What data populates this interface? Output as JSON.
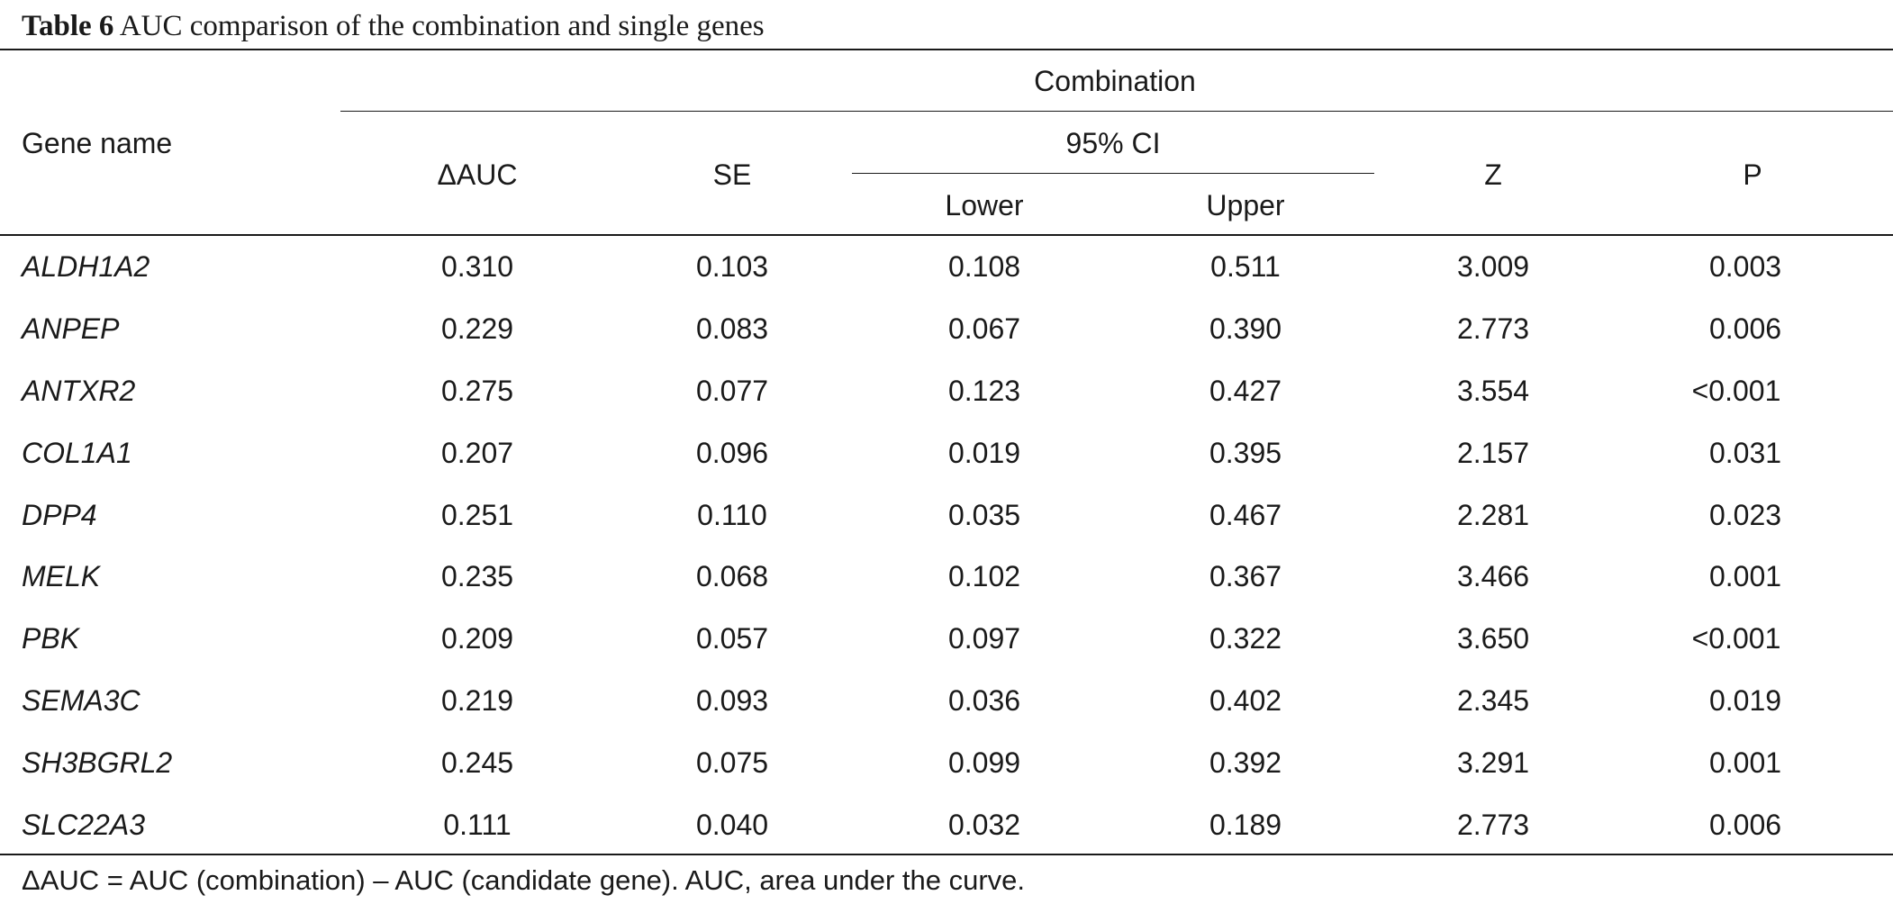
{
  "caption": {
    "label": "Table 6",
    "title": "AUC comparison of the combination and single genes"
  },
  "header": {
    "gene_name": "Gene name",
    "group": "Combination",
    "delta_auc": "ΔAUC",
    "se": "SE",
    "ci": "95% CI",
    "lower": "Lower",
    "upper": "Upper",
    "z": "Z",
    "p": "P"
  },
  "rows": [
    {
      "gene": "ALDH1A2",
      "dauc": "0.310",
      "se": "0.103",
      "lower": "0.108",
      "upper": "0.511",
      "z": "3.009",
      "p": "0.003"
    },
    {
      "gene": "ANPEP",
      "dauc": "0.229",
      "se": "0.083",
      "lower": "0.067",
      "upper": "0.390",
      "z": "2.773",
      "p": "0.006"
    },
    {
      "gene": "ANTXR2",
      "dauc": "0.275",
      "se": "0.077",
      "lower": "0.123",
      "upper": "0.427",
      "z": "3.554",
      "p": "<0.001"
    },
    {
      "gene": "COL1A1",
      "dauc": "0.207",
      "se": "0.096",
      "lower": "0.019",
      "upper": "0.395",
      "z": "2.157",
      "p": "0.031"
    },
    {
      "gene": "DPP4",
      "dauc": "0.251",
      "se": "0.110",
      "lower": "0.035",
      "upper": "0.467",
      "z": "2.281",
      "p": "0.023"
    },
    {
      "gene": "MELK",
      "dauc": "0.235",
      "se": "0.068",
      "lower": "0.102",
      "upper": "0.367",
      "z": "3.466",
      "p": "0.001"
    },
    {
      "gene": "PBK",
      "dauc": "0.209",
      "se": "0.057",
      "lower": "0.097",
      "upper": "0.322",
      "z": "3.650",
      "p": "<0.001"
    },
    {
      "gene": "SEMA3C",
      "dauc": "0.219",
      "se": "0.093",
      "lower": "0.036",
      "upper": "0.402",
      "z": "2.345",
      "p": "0.019"
    },
    {
      "gene": "SH3BGRL2",
      "dauc": "0.245",
      "se": "0.075",
      "lower": "0.099",
      "upper": "0.392",
      "z": "3.291",
      "p": "0.001"
    },
    {
      "gene": "SLC22A3",
      "dauc": "0.111",
      "se": "0.040",
      "lower": "0.032",
      "upper": "0.189",
      "z": "2.773",
      "p": "0.006"
    }
  ],
  "footnote": "ΔAUC = AUC (combination) – AUC (candidate gene). AUC, area under the curve."
}
